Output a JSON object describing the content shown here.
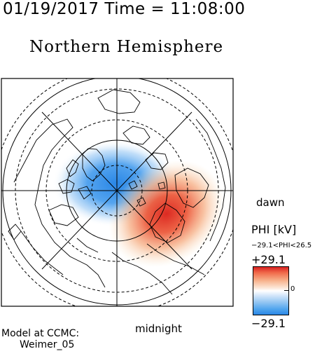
{
  "header": {
    "timestamp": "01/19/2017 Time = 11:08:00",
    "title": "Northern Hemisphere"
  },
  "map": {
    "projection": "polar stereographic, north pole centered",
    "orientation_labels": {
      "right": "dawn",
      "bottom": "midnight"
    },
    "potential_pattern": {
      "negative_cell_color": "#2f8ce8",
      "positive_cell_color": "#e0302a",
      "background_color": "#ffffff"
    }
  },
  "legend": {
    "title": "PHI [kV]",
    "range_text": "−29.1<PHI<26.5",
    "max_label": "+29.1",
    "zero_label": "0",
    "min_label": "−29.1",
    "unit": "kV",
    "min_value": -29.1,
    "max_value": 26.5,
    "scale_min": -29.1,
    "scale_max": 29.1
  },
  "footer": {
    "model_line1": "Model at CCMC:",
    "model_line2": "Weimer_05"
  }
}
